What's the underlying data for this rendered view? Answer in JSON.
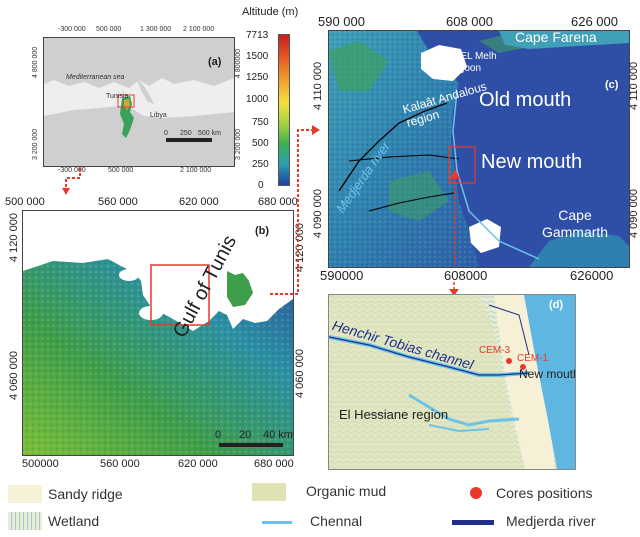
{
  "panel_a": {
    "label": "(a)",
    "top_ticks": [
      "-300 000",
      "500 000",
      "1 300 000",
      "2 100 000"
    ],
    "bottom_ticks": [
      "-300 000",
      "500 000",
      "2 100 000"
    ],
    "left_ticks": [
      "4 800 000",
      "3 200 000"
    ],
    "right_ticks": [
      "4 800000",
      "3 200 000"
    ],
    "sea_label": "Mediterranean sea",
    "country_labels": [
      "Tunisia",
      "Libya"
    ],
    "scale_ticks": [
      "0",
      "250",
      "500 km"
    ]
  },
  "altitude": {
    "title": "Altitude (m)",
    "ticks": [
      "7713",
      "1500",
      "1250",
      "1000",
      "750",
      "500",
      "250",
      "0"
    ]
  },
  "panel_b": {
    "label": "(b)",
    "top_ticks": [
      "500 000",
      "560 000",
      "620 000",
      "680 000"
    ],
    "bottom_ticks": [
      "500000",
      "560 000",
      "620 000",
      "680 000"
    ],
    "left_ticks": [
      "4 120 000",
      "4 060 000"
    ],
    "right_ticks": [
      "4 120 000",
      "4 060 000"
    ],
    "gulf_label": "Gulf of Tunis",
    "scale_ticks": [
      "0",
      "20",
      "40 km"
    ]
  },
  "panel_c": {
    "label": "(c)",
    "top_ticks": [
      "590 000",
      "608 000",
      "626 000"
    ],
    "bottom_ticks": [
      "590000",
      "608000",
      "626000"
    ],
    "left_ticks": [
      "4 110 000",
      "4 090 000"
    ],
    "right_ticks": [
      "4 110 000",
      "4 090 000"
    ],
    "labels": {
      "cape_farena": "Cape Farena",
      "lagoon": "Ghar EL Melh lagoon",
      "old_mouth": "Old mouth",
      "region": "Kalaât Andalous region",
      "new_mouth": "New mouth",
      "river": "Medjerda river",
      "cape_gammarth": "Cape Gammarth"
    }
  },
  "panel_d": {
    "label": "(d)",
    "channel": "Henchir Tobias channel",
    "cores": [
      "CEM-3",
      "CEM-1"
    ],
    "new_mouth": "New mouth",
    "region": "El Hessiane region"
  },
  "legend": {
    "sandy_ridge": "Sandy ridge",
    "wetland": "Wetland",
    "organic_mud": "Organic mud",
    "channel": "Chennal",
    "cores": "Cores positions",
    "river": "Medjerda river"
  },
  "colors": {
    "sea_blue": "#2f4fa6",
    "channel": "#6cc3e8",
    "river": "#1f2f8a",
    "core": "#e8392b",
    "arrow": "#e8392b",
    "sandy": "#f6f1d6",
    "organic": "#dfe3b3"
  }
}
